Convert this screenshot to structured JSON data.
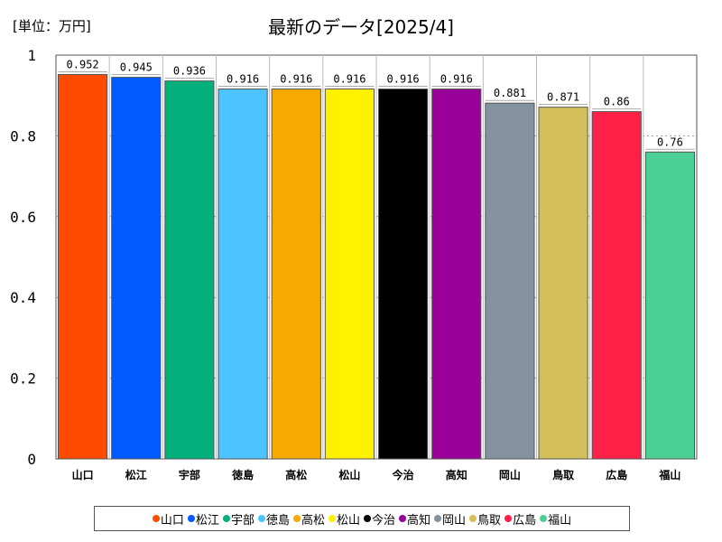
{
  "unit_label": "[単位：万円]",
  "chart_data": {
    "type": "bar",
    "title": "最新のデータ[2025/4]",
    "xlabel": "",
    "ylabel": "",
    "ylim": [
      0,
      1
    ],
    "yticks": [
      0,
      0.2,
      0.4,
      0.6,
      0.8,
      1
    ],
    "ytick_labels": [
      "0",
      "0.2",
      "0.4",
      "0.6",
      "0.8",
      "1"
    ],
    "grid": true,
    "legend_position": "bottom",
    "categories": [
      "山口",
      "松江",
      "宇部",
      "徳島",
      "高松",
      "松山",
      "今治",
      "高知",
      "岡山",
      "鳥取",
      "広島",
      "福山"
    ],
    "values": [
      0.952,
      0.945,
      0.936,
      0.916,
      0.916,
      0.916,
      0.916,
      0.916,
      0.881,
      0.871,
      0.86,
      0.76
    ],
    "value_labels": [
      "0.952",
      "0.945",
      "0.936",
      "0.916",
      "0.916",
      "0.916",
      "0.916",
      "0.916",
      "0.881",
      "0.871",
      "0.86",
      "0.76"
    ],
    "colors": [
      "#ff4b00",
      "#005aff",
      "#03af7a",
      "#4dc4ff",
      "#f6aa00",
      "#fff100",
      "#000000",
      "#990099",
      "#84919e",
      "#d4c05a",
      "#ff2048",
      "#4ccf95"
    ]
  }
}
